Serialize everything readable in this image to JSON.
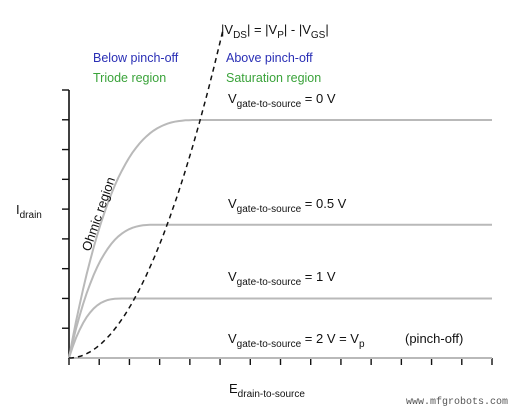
{
  "chart_data": {
    "type": "line",
    "xlabel_main": "E",
    "xlabel_sub": "drain-to-source",
    "ylabel_main": "I",
    "ylabel_sub": "drain",
    "region_left_blue": "Below pinch-off",
    "region_left_green": "Triode region",
    "region_right_blue": "Above pinch-off",
    "region_right_green": "Saturation region",
    "ohmic_label": "Ohmic region",
    "pinch_equation": {
      "p1": "|V",
      "s1": "DS",
      "p2": "| = |V",
      "s2": "P",
      "p3": "| - |V",
      "s3": "GS",
      "p4": "|"
    },
    "series": [
      {
        "name_main": "V",
        "name_sub": "gate-to-source",
        "name_rest": " = 0 V",
        "sat_level": 1.0,
        "knee": 0.31
      },
      {
        "name_main": "V",
        "name_sub": "gate-to-source",
        "name_rest": " = 0.5 V",
        "sat_level": 0.56,
        "knee": 0.21
      },
      {
        "name_main": "V",
        "name_sub": "gate-to-source",
        "name_rest": " = 1 V",
        "sat_level": 0.25,
        "knee": 0.13
      },
      {
        "name_main": "V",
        "name_sub": "gate-to-source",
        "name_rest": " = 2 V = V",
        "name_sub2": "p",
        "name_extra": "(pinch-off)",
        "sat_level": 0.0,
        "knee": 0.0
      }
    ],
    "x_ticks": 15,
    "y_ticks": 9,
    "grid": false,
    "colors": {
      "curves": "#b9b9b9",
      "boundary": "#111111",
      "blue": "#2a2fb5",
      "green": "#3aa33a"
    }
  },
  "watermark": "www.mfgrobots.com"
}
